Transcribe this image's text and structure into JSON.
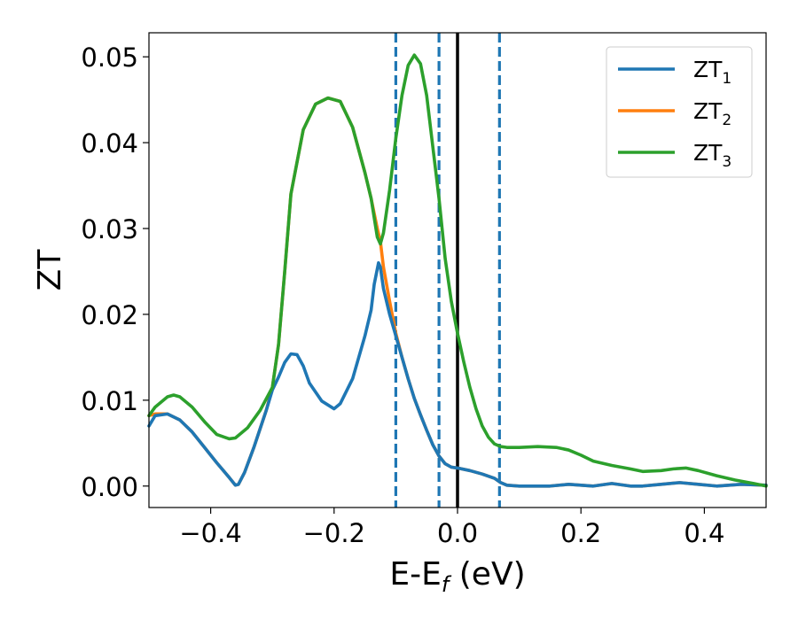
{
  "chart_data": {
    "type": "line",
    "xlabel": {
      "base": "E-E",
      "sub": "f",
      "suffix": " (eV)"
    },
    "ylabel": "ZT",
    "xlim": [
      -0.5,
      0.5
    ],
    "ylim": [
      -0.0025,
      0.0528
    ],
    "xticks": [
      -0.4,
      -0.2,
      0.0,
      0.2,
      0.4
    ],
    "xtick_labels": [
      "−0.4",
      "−0.2",
      "0.0",
      "0.2",
      "0.4"
    ],
    "yticks": [
      0.0,
      0.01,
      0.02,
      0.03,
      0.04,
      0.05
    ],
    "ytick_labels": [
      "0.00",
      "0.01",
      "0.02",
      "0.03",
      "0.04",
      "0.05"
    ],
    "grid": false,
    "legend_position": "top-right",
    "vlines": [
      {
        "x": -0.1,
        "style": "dashed",
        "color": "#1f77b4"
      },
      {
        "x": -0.03,
        "style": "dashed",
        "color": "#1f77b4"
      },
      {
        "x": 0.0,
        "style": "solid",
        "color": "#000000"
      },
      {
        "x": 0.068,
        "style": "dashed",
        "color": "#1f77b4"
      }
    ],
    "series": [
      {
        "name": "ZT",
        "name_sub": "1",
        "color": "#1f77b4",
        "points": [
          [
            -0.5,
            0.007
          ],
          [
            -0.49,
            0.0082
          ],
          [
            -0.47,
            0.0084
          ],
          [
            -0.45,
            0.0077
          ],
          [
            -0.43,
            0.0063
          ],
          [
            -0.41,
            0.0045
          ],
          [
            -0.39,
            0.0027
          ],
          [
            -0.37,
            0.001
          ],
          [
            -0.36,
            0.0001
          ],
          [
            -0.355,
            0.0002
          ],
          [
            -0.345,
            0.0016
          ],
          [
            -0.33,
            0.0045
          ],
          [
            -0.31,
            0.0088
          ],
          [
            -0.3,
            0.0112
          ],
          [
            -0.29,
            0.0127
          ],
          [
            -0.28,
            0.0144
          ],
          [
            -0.27,
            0.0154
          ],
          [
            -0.26,
            0.0153
          ],
          [
            -0.25,
            0.014
          ],
          [
            -0.24,
            0.012
          ],
          [
            -0.22,
            0.0099
          ],
          [
            -0.2,
            0.009
          ],
          [
            -0.19,
            0.0096
          ],
          [
            -0.17,
            0.0125
          ],
          [
            -0.15,
            0.0175
          ],
          [
            -0.14,
            0.0205
          ],
          [
            -0.135,
            0.0235
          ],
          [
            -0.128,
            0.026
          ],
          [
            -0.125,
            0.0255
          ],
          [
            -0.12,
            0.023
          ],
          [
            -0.11,
            0.02
          ],
          [
            -0.1,
            0.0175
          ],
          [
            -0.09,
            0.015
          ],
          [
            -0.08,
            0.0125
          ],
          [
            -0.07,
            0.0102
          ],
          [
            -0.06,
            0.0083
          ],
          [
            -0.05,
            0.0065
          ],
          [
            -0.04,
            0.0048
          ],
          [
            -0.03,
            0.0035
          ],
          [
            -0.02,
            0.0026
          ],
          [
            -0.01,
            0.0022
          ],
          [
            0.0,
            0.0021
          ],
          [
            0.02,
            0.0018
          ],
          [
            0.04,
            0.0014
          ],
          [
            0.06,
            0.0009
          ],
          [
            0.07,
            0.0004
          ],
          [
            0.08,
            0.0001
          ],
          [
            0.1,
            0.0
          ],
          [
            0.15,
            0.0
          ],
          [
            0.18,
            0.0002
          ],
          [
            0.2,
            0.0001
          ],
          [
            0.22,
            0.0
          ],
          [
            0.25,
            0.0003
          ],
          [
            0.28,
            0.0
          ],
          [
            0.3,
            0.0
          ],
          [
            0.33,
            0.0002
          ],
          [
            0.36,
            0.0004
          ],
          [
            0.39,
            0.0002
          ],
          [
            0.42,
            0.0
          ],
          [
            0.46,
            0.0002
          ],
          [
            0.5,
            0.0001
          ]
        ]
      },
      {
        "name": "ZT",
        "name_sub": "2",
        "color": "#ff7f0e",
        "points": [
          [
            -0.5,
            0.0082
          ],
          [
            -0.49,
            0.0084
          ],
          [
            -0.47,
            0.0084
          ],
          [
            -0.45,
            0.0077
          ],
          [
            -0.43,
            0.0063
          ],
          [
            -0.41,
            0.0045
          ],
          [
            -0.39,
            0.0027
          ],
          [
            -0.37,
            0.001
          ],
          [
            -0.36,
            0.0001
          ],
          [
            -0.355,
            0.0002
          ],
          [
            -0.345,
            0.0016
          ],
          [
            -0.33,
            0.0045
          ],
          [
            -0.31,
            0.0088
          ],
          [
            -0.3,
            0.0115
          ],
          [
            -0.29,
            0.0165
          ],
          [
            -0.28,
            0.025
          ],
          [
            -0.27,
            0.034
          ],
          [
            -0.25,
            0.0415
          ],
          [
            -0.23,
            0.0445
          ],
          [
            -0.21,
            0.0452
          ],
          [
            -0.19,
            0.0448
          ],
          [
            -0.17,
            0.0418
          ],
          [
            -0.15,
            0.0365
          ],
          [
            -0.14,
            0.0335
          ],
          [
            -0.13,
            0.03
          ],
          [
            -0.125,
            0.0285
          ],
          [
            -0.12,
            0.0255
          ],
          [
            -0.11,
            0.0215
          ],
          [
            -0.1,
            0.0178
          ],
          [
            -0.09,
            0.015
          ],
          [
            -0.08,
            0.0125
          ],
          [
            -0.07,
            0.0102
          ],
          [
            -0.06,
            0.0083
          ],
          [
            -0.05,
            0.0065
          ],
          [
            -0.04,
            0.0048
          ],
          [
            -0.03,
            0.0035
          ],
          [
            -0.02,
            0.0026
          ],
          [
            -0.01,
            0.0022
          ],
          [
            0.0,
            0.0021
          ],
          [
            0.02,
            0.0018
          ],
          [
            0.04,
            0.0014
          ],
          [
            0.06,
            0.0009
          ],
          [
            0.07,
            0.0004
          ],
          [
            0.08,
            0.0001
          ],
          [
            0.1,
            0.0
          ],
          [
            0.15,
            0.0
          ],
          [
            0.18,
            0.0002
          ],
          [
            0.2,
            0.0001
          ],
          [
            0.22,
            0.0
          ],
          [
            0.25,
            0.0003
          ],
          [
            0.28,
            0.0
          ],
          [
            0.3,
            0.0
          ],
          [
            0.33,
            0.0002
          ],
          [
            0.36,
            0.0004
          ],
          [
            0.39,
            0.0002
          ],
          [
            0.42,
            0.0
          ],
          [
            0.46,
            0.0002
          ],
          [
            0.5,
            0.0001
          ]
        ]
      },
      {
        "name": "ZT",
        "name_sub": "3",
        "color": "#2ca02c",
        "points": [
          [
            -0.5,
            0.0082
          ],
          [
            -0.49,
            0.0092
          ],
          [
            -0.47,
            0.0104
          ],
          [
            -0.46,
            0.0106
          ],
          [
            -0.45,
            0.0104
          ],
          [
            -0.43,
            0.0092
          ],
          [
            -0.41,
            0.0075
          ],
          [
            -0.39,
            0.006
          ],
          [
            -0.37,
            0.0055
          ],
          [
            -0.36,
            0.0056
          ],
          [
            -0.34,
            0.0068
          ],
          [
            -0.32,
            0.0088
          ],
          [
            -0.3,
            0.0115
          ],
          [
            -0.29,
            0.0165
          ],
          [
            -0.28,
            0.025
          ],
          [
            -0.27,
            0.034
          ],
          [
            -0.25,
            0.0415
          ],
          [
            -0.23,
            0.0445
          ],
          [
            -0.21,
            0.0452
          ],
          [
            -0.19,
            0.0448
          ],
          [
            -0.17,
            0.0418
          ],
          [
            -0.15,
            0.0365
          ],
          [
            -0.14,
            0.0335
          ],
          [
            -0.13,
            0.029
          ],
          [
            -0.125,
            0.0282
          ],
          [
            -0.12,
            0.0295
          ],
          [
            -0.11,
            0.0345
          ],
          [
            -0.1,
            0.0405
          ],
          [
            -0.09,
            0.0455
          ],
          [
            -0.08,
            0.049
          ],
          [
            -0.07,
            0.0502
          ],
          [
            -0.06,
            0.0492
          ],
          [
            -0.05,
            0.0455
          ],
          [
            -0.04,
            0.0395
          ],
          [
            -0.03,
            0.0335
          ],
          [
            -0.02,
            0.0265
          ],
          [
            -0.01,
            0.0215
          ],
          [
            0.0,
            0.0178
          ],
          [
            0.01,
            0.0145
          ],
          [
            0.02,
            0.0115
          ],
          [
            0.03,
            0.009
          ],
          [
            0.04,
            0.007
          ],
          [
            0.05,
            0.0057
          ],
          [
            0.06,
            0.0049
          ],
          [
            0.07,
            0.0046
          ],
          [
            0.08,
            0.0045
          ],
          [
            0.1,
            0.0045
          ],
          [
            0.13,
            0.0046
          ],
          [
            0.16,
            0.0045
          ],
          [
            0.18,
            0.0042
          ],
          [
            0.2,
            0.0036
          ],
          [
            0.22,
            0.0029
          ],
          [
            0.25,
            0.0024
          ],
          [
            0.28,
            0.002
          ],
          [
            0.3,
            0.0017
          ],
          [
            0.33,
            0.0018
          ],
          [
            0.35,
            0.002
          ],
          [
            0.37,
            0.0021
          ],
          [
            0.39,
            0.0018
          ],
          [
            0.42,
            0.0012
          ],
          [
            0.45,
            0.0007
          ],
          [
            0.48,
            0.0003
          ],
          [
            0.5,
            0.0
          ]
        ]
      }
    ]
  }
}
